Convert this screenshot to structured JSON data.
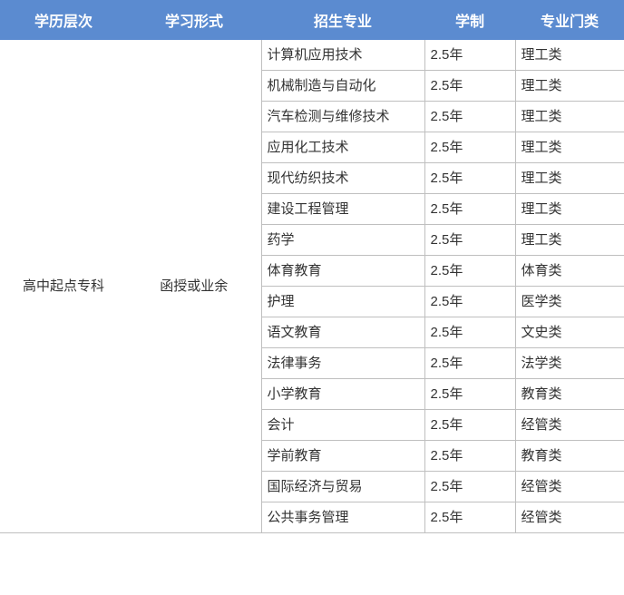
{
  "header": {
    "bg_color": "#5b8bd0",
    "text_color": "#ffffff",
    "cols": [
      "学历层次",
      "学习形式",
      "招生专业",
      "学制",
      "专业门类"
    ]
  },
  "body": {
    "text_color": "#333333",
    "border_color": "#bfbfbf",
    "bg_color": "#ffffff",
    "level": "高中起点专科",
    "form": "函授或业余",
    "rows": [
      {
        "major": "计算机应用技术",
        "duration": "2.5年",
        "category": "理工类"
      },
      {
        "major": "机械制造与自动化",
        "duration": "2.5年",
        "category": "理工类"
      },
      {
        "major": "汽车检测与维修技术",
        "duration": "2.5年",
        "category": "理工类"
      },
      {
        "major": "应用化工技术",
        "duration": "2.5年",
        "category": "理工类"
      },
      {
        "major": "现代纺织技术",
        "duration": "2.5年",
        "category": "理工类"
      },
      {
        "major": "建设工程管理",
        "duration": "2.5年",
        "category": "理工类"
      },
      {
        "major": "药学",
        "duration": "2.5年",
        "category": "理工类"
      },
      {
        "major": "体育教育",
        "duration": "2.5年",
        "category": "体育类"
      },
      {
        "major": "护理",
        "duration": "2.5年",
        "category": "医学类"
      },
      {
        "major": "语文教育",
        "duration": "2.5年",
        "category": "文史类"
      },
      {
        "major": "法律事务",
        "duration": "2.5年",
        "category": "法学类"
      },
      {
        "major": "小学教育",
        "duration": "2.5年",
        "category": "教育类"
      },
      {
        "major": "会计",
        "duration": "2.5年",
        "category": "经管类"
      },
      {
        "major": "学前教育",
        "duration": "2.5年",
        "category": "教育类"
      },
      {
        "major": "国际经济与贸易",
        "duration": "2.5年",
        "category": "经管类"
      },
      {
        "major": "公共事务管理",
        "duration": "2.5年",
        "category": "经管类"
      }
    ]
  }
}
